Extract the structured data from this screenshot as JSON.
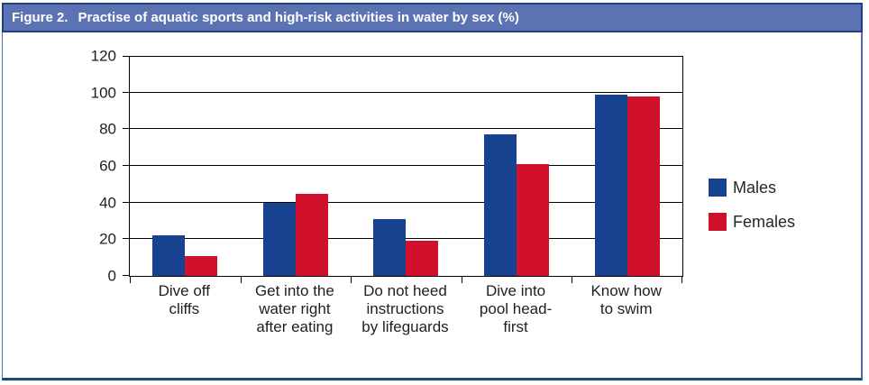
{
  "title_bar": {
    "figure_label": "Figure 2.",
    "figure_title": "Practise of aquatic sports and high-risk activities in water by sex (%)"
  },
  "colors": {
    "males": "#16428f",
    "females": "#d1112b",
    "titlebar_fill": "#5b73b3",
    "titlebar_border": "#223f7e",
    "frame_side": "#4a6db0",
    "frame_bottom": "#1b4a75",
    "axis": "#000000"
  },
  "legend": {
    "items": [
      {
        "label": "Males",
        "color": "#16428f"
      },
      {
        "label": "Females",
        "color": "#d1112b"
      }
    ]
  },
  "chart_data": {
    "type": "bar",
    "title": "Figure 2. Practise of aquatic sports and high-risk activities in water by sex (%)",
    "categories": [
      "Dive off\ncliffs",
      "Get into the\nwater right\nafter eating",
      "Do not heed\ninstructions\nby lifeguards",
      "Dive into\npool head-\nfirst",
      "Know how\nto swim"
    ],
    "series": [
      {
        "name": "Males",
        "color": "#16428f",
        "values": [
          22,
          40,
          31,
          77,
          99
        ]
      },
      {
        "name": "Females",
        "color": "#d1112b",
        "values": [
          11,
          45,
          19,
          61,
          98
        ]
      }
    ],
    "xlabel": "",
    "ylabel": "",
    "ylim": [
      0,
      120
    ],
    "ytick_step": 20,
    "grid": true,
    "legend_position": "right"
  }
}
